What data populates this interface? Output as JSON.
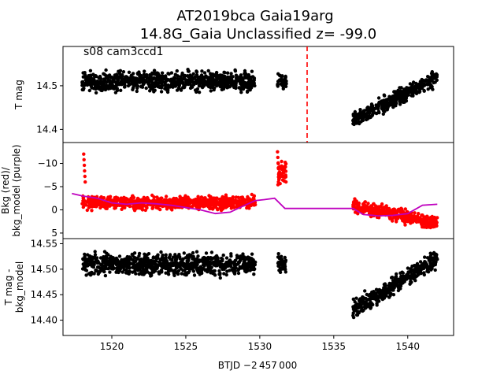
{
  "title_line1": "AT2019bca  Gaia19arg",
  "title_line2": "14.8G_Gaia Unclassified z= -99.0",
  "annotation": "s08 cam3ccd1",
  "xlabel": "BTJD −2 457 000",
  "colors": {
    "points": "#000000",
    "bkg": "#ff0000",
    "bkg_model": "#bf00bf",
    "marker_line": "#ff0000"
  },
  "chart_data": [
    {
      "type": "scatter",
      "panel": "top",
      "ylabel": "T mag",
      "yticks": [
        "14.4",
        "14.5"
      ],
      "ylim": [
        14.59,
        14.37
      ],
      "y_inverted": true,
      "vertical_line": {
        "x": 1533.2,
        "style": "dashed",
        "color": "#ff0000"
      },
      "segments": [
        {
          "x_range": [
            1518.0,
            1529.7
          ],
          "y_center": 14.51,
          "y_spread": 0.03
        },
        {
          "x_range": [
            1531.2,
            1531.8
          ],
          "y_center": 14.51,
          "y_spread": 0.025
        },
        {
          "x_range": [
            1536.3,
            1542.0
          ],
          "y_start": 14.42,
          "y_end": 14.52,
          "y_spread": 0.025
        }
      ]
    },
    {
      "type": "scatter",
      "panel": "middle",
      "ylabel": "Bkg (red)/\nbkg_model (purple)",
      "yticks": [
        "5",
        "0",
        "−5",
        "−10"
      ],
      "ylim": [
        -14.5,
        6.2
      ],
      "series": [
        {
          "style": "points",
          "color": "#ff0000",
          "segments": [
            {
              "x_range": [
                1518.0,
                1529.7
              ],
              "y_center": -1.5,
              "y_spread": 2.0
            },
            {
              "x_range": [
                1531.2,
                1531.8
              ],
              "y_center": -8,
              "y_spread": 4.0
            },
            {
              "x_range": [
                1536.3,
                1542.0
              ],
              "y_start": -1.0,
              "y_end": 3.0,
              "y_spread": 2.0
            }
          ],
          "dips": [
            {
              "x": 1518.1,
              "y": -12.0
            },
            {
              "x": 1531.2,
              "y": -12.5
            }
          ]
        },
        {
          "style": "line",
          "color": "#bf00bf",
          "x": [
            1517.3,
            1518.0,
            1519.0,
            1520.0,
            1521.0,
            1522.0,
            1523.0,
            1524.0,
            1525.0,
            1526.0,
            1527.0,
            1528.0,
            1529.0,
            1529.7,
            1530.3,
            1531.0,
            1531.7,
            1533.0,
            1535.0,
            1536.3,
            1537.0,
            1538.0,
            1539.0,
            1540.0,
            1541.0,
            1542.0
          ],
          "y": [
            -3.5,
            -3.0,
            -2.5,
            -1.5,
            -1.2,
            -1.5,
            -1.3,
            -1.0,
            -0.5,
            0.0,
            0.8,
            0.5,
            -1.0,
            -2.0,
            -2.2,
            -2.5,
            -0.3,
            -0.3,
            -0.3,
            -0.3,
            1.0,
            1.3,
            1.2,
            0.8,
            -1.0,
            -1.2
          ]
        }
      ]
    },
    {
      "type": "scatter",
      "panel": "bottom",
      "ylabel": "T mag -\nbkg_model",
      "yticks": [
        "14.40",
        "14.45",
        "14.50",
        "14.55"
      ],
      "ylim": [
        14.56,
        14.37
      ],
      "y_inverted": true,
      "xticks": [
        "1520",
        "1525",
        "1530",
        "1535",
        "1540"
      ],
      "xlim": [
        1516.7,
        1543.1
      ]
    }
  ]
}
